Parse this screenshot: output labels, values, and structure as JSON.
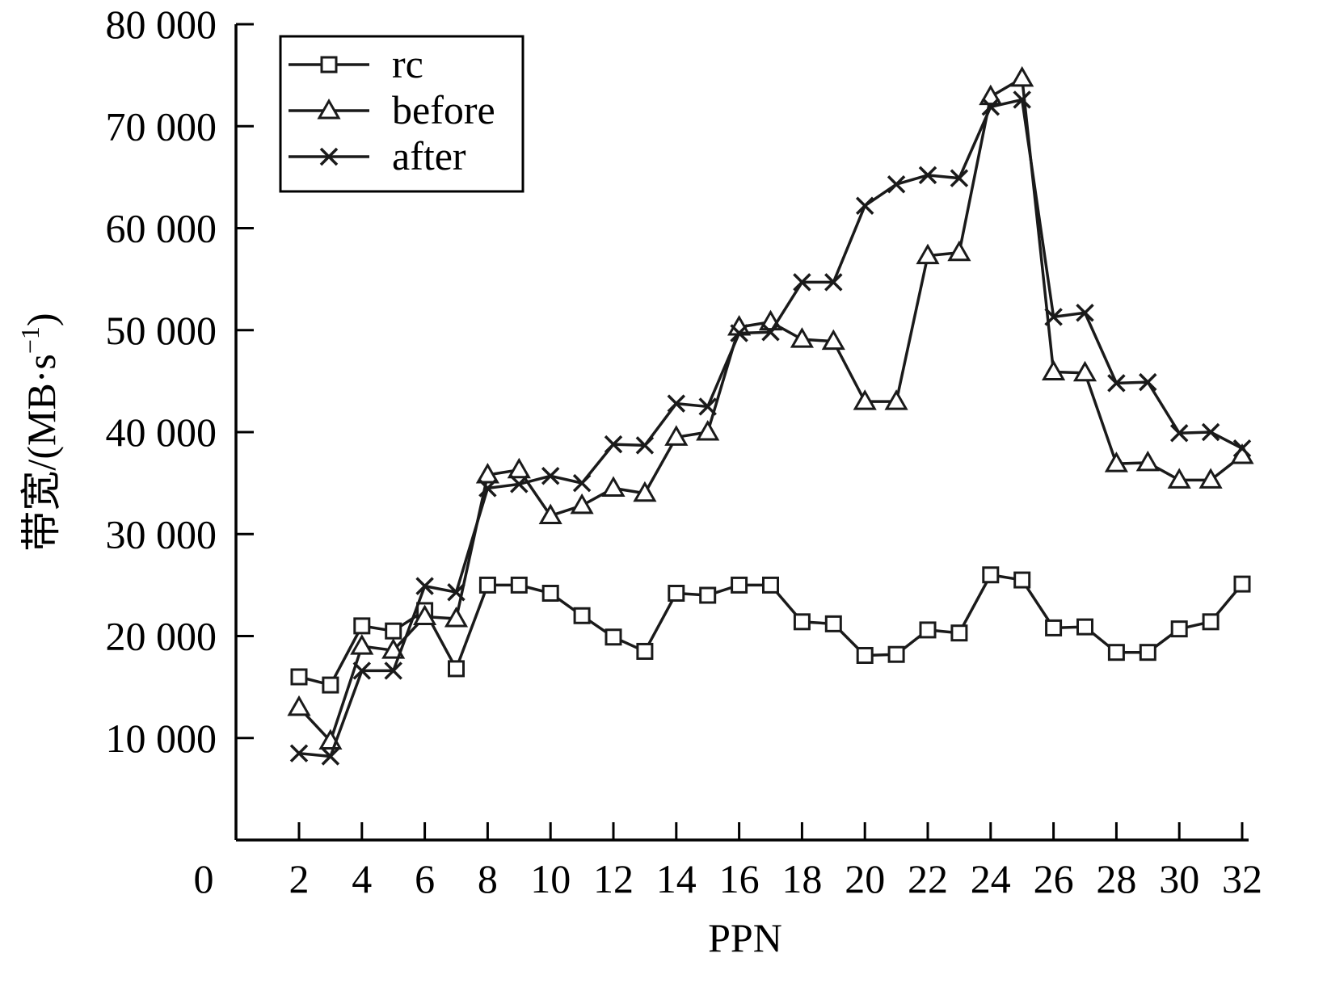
{
  "chart_data": {
    "type": "line",
    "xlabel": "PPN",
    "ylabel": "带宽/(MB·s",
    "ylabel_sup": "−1",
    "ylabel_close": ")",
    "xlim": [
      1,
      32
    ],
    "ylim": [
      0,
      80000
    ],
    "x_ticks": [
      2,
      4,
      6,
      8,
      10,
      12,
      14,
      16,
      18,
      20,
      22,
      24,
      26,
      28,
      30,
      32
    ],
    "x_tick_labels": [
      "2",
      "4",
      "6",
      "8",
      "10",
      "12",
      "14",
      "16",
      "18",
      "20",
      "22",
      "24",
      "26",
      "28",
      "30",
      "32"
    ],
    "origin_label": "0",
    "y_ticks": [
      10000,
      20000,
      30000,
      40000,
      50000,
      60000,
      70000,
      80000
    ],
    "y_tick_labels": [
      "10 000",
      "20 000",
      "30 000",
      "40 000",
      "50 000",
      "60 000",
      "70 000",
      "80 000"
    ],
    "x": [
      2,
      3,
      4,
      5,
      6,
      7,
      8,
      9,
      10,
      11,
      12,
      13,
      14,
      15,
      16,
      17,
      18,
      19,
      20,
      21,
      22,
      23,
      24,
      25,
      26,
      27,
      28,
      29,
      30,
      31,
      32
    ],
    "legend_position": "top-left",
    "grid": false,
    "series": [
      {
        "name": "rc",
        "marker": "square",
        "values": [
          16000,
          15200,
          21000,
          20500,
          22500,
          16800,
          25000,
          25000,
          24200,
          22000,
          19900,
          18500,
          24200,
          24000,
          25000,
          25000,
          21400,
          21200,
          18100,
          18200,
          20600,
          20300,
          26000,
          25500,
          20800,
          20900,
          18400,
          18400,
          20700,
          21400,
          25100
        ]
      },
      {
        "name": "before",
        "marker": "triangle",
        "values": [
          13000,
          9700,
          19000,
          18600,
          21900,
          21700,
          35800,
          36300,
          31800,
          32800,
          34500,
          34000,
          39500,
          40000,
          50300,
          50800,
          49100,
          48900,
          43000,
          43000,
          57300,
          57600,
          72900,
          74700,
          45900,
          45800,
          36900,
          37000,
          35300,
          35300,
          37700
        ]
      },
      {
        "name": "after",
        "marker": "x",
        "values": [
          8500,
          8200,
          16600,
          16600,
          24900,
          24300,
          34500,
          34900,
          35700,
          35000,
          38800,
          38700,
          42800,
          42500,
          49700,
          49800,
          54700,
          54700,
          62200,
          64300,
          65200,
          64900,
          71900,
          72600,
          51300,
          51700,
          44800,
          44900,
          39900,
          40000,
          38400
        ]
      }
    ]
  }
}
